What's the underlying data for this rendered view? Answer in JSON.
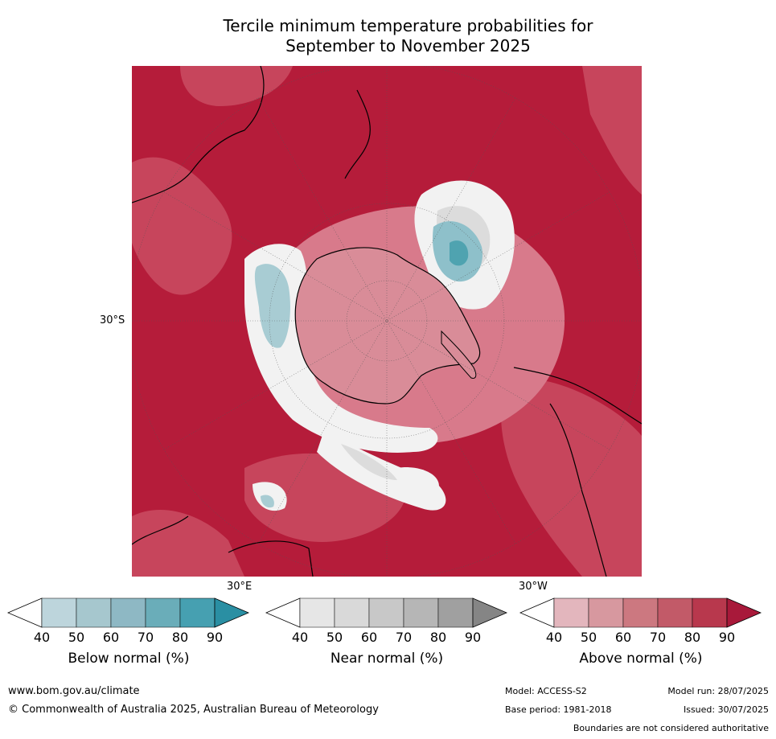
{
  "title": {
    "line1": "Tercile minimum temperature probabilities for",
    "line2": "September to November 2025"
  },
  "map": {
    "projection": "polar",
    "labels": {
      "lat": "30°S",
      "lon_east": "30°E",
      "lon_west": "30°W"
    },
    "colors": {
      "above_dominant": "#b51c3a",
      "below_core": "#4fa3b0",
      "near_core": "#e6e6e6",
      "antarctica": "#d88a97"
    }
  },
  "colorbars": [
    {
      "name": "below",
      "label": "Below normal (%)",
      "ticks": [
        "40",
        "50",
        "60",
        "70",
        "80",
        "90"
      ],
      "colors": [
        "#ffffff",
        "#bdd5dc",
        "#a6c7ce",
        "#8eb8c4",
        "#6aadb9",
        "#46a0b1",
        "#2a8fa3"
      ]
    },
    {
      "name": "near",
      "label": "Near normal (%)",
      "ticks": [
        "40",
        "50",
        "60",
        "70",
        "80",
        "90"
      ],
      "colors": [
        "#ffffff",
        "#e6e6e6",
        "#d9d9d9",
        "#c8c8c8",
        "#b6b6b6",
        "#a0a0a0",
        "#858585"
      ]
    },
    {
      "name": "above",
      "label": "Above normal (%)",
      "ticks": [
        "40",
        "50",
        "60",
        "70",
        "80",
        "90"
      ],
      "colors": [
        "#ffffff",
        "#e3b6bd",
        "#d7989f",
        "#cc7880",
        "#c25a68",
        "#b8384d",
        "#a8193a"
      ]
    }
  ],
  "footer": {
    "website": "www.bom.gov.au/climate",
    "copyright": "© Commonwealth of Australia 2025, Australian Bureau of Meteorology",
    "model": "Model: ACCESS-S2",
    "base_period": "Base period: 1981-2018",
    "model_run": "Model run: 28/07/2025",
    "issued": "Issued: 30/07/2025",
    "disclaimer": "Boundaries are not considered authoritative"
  }
}
